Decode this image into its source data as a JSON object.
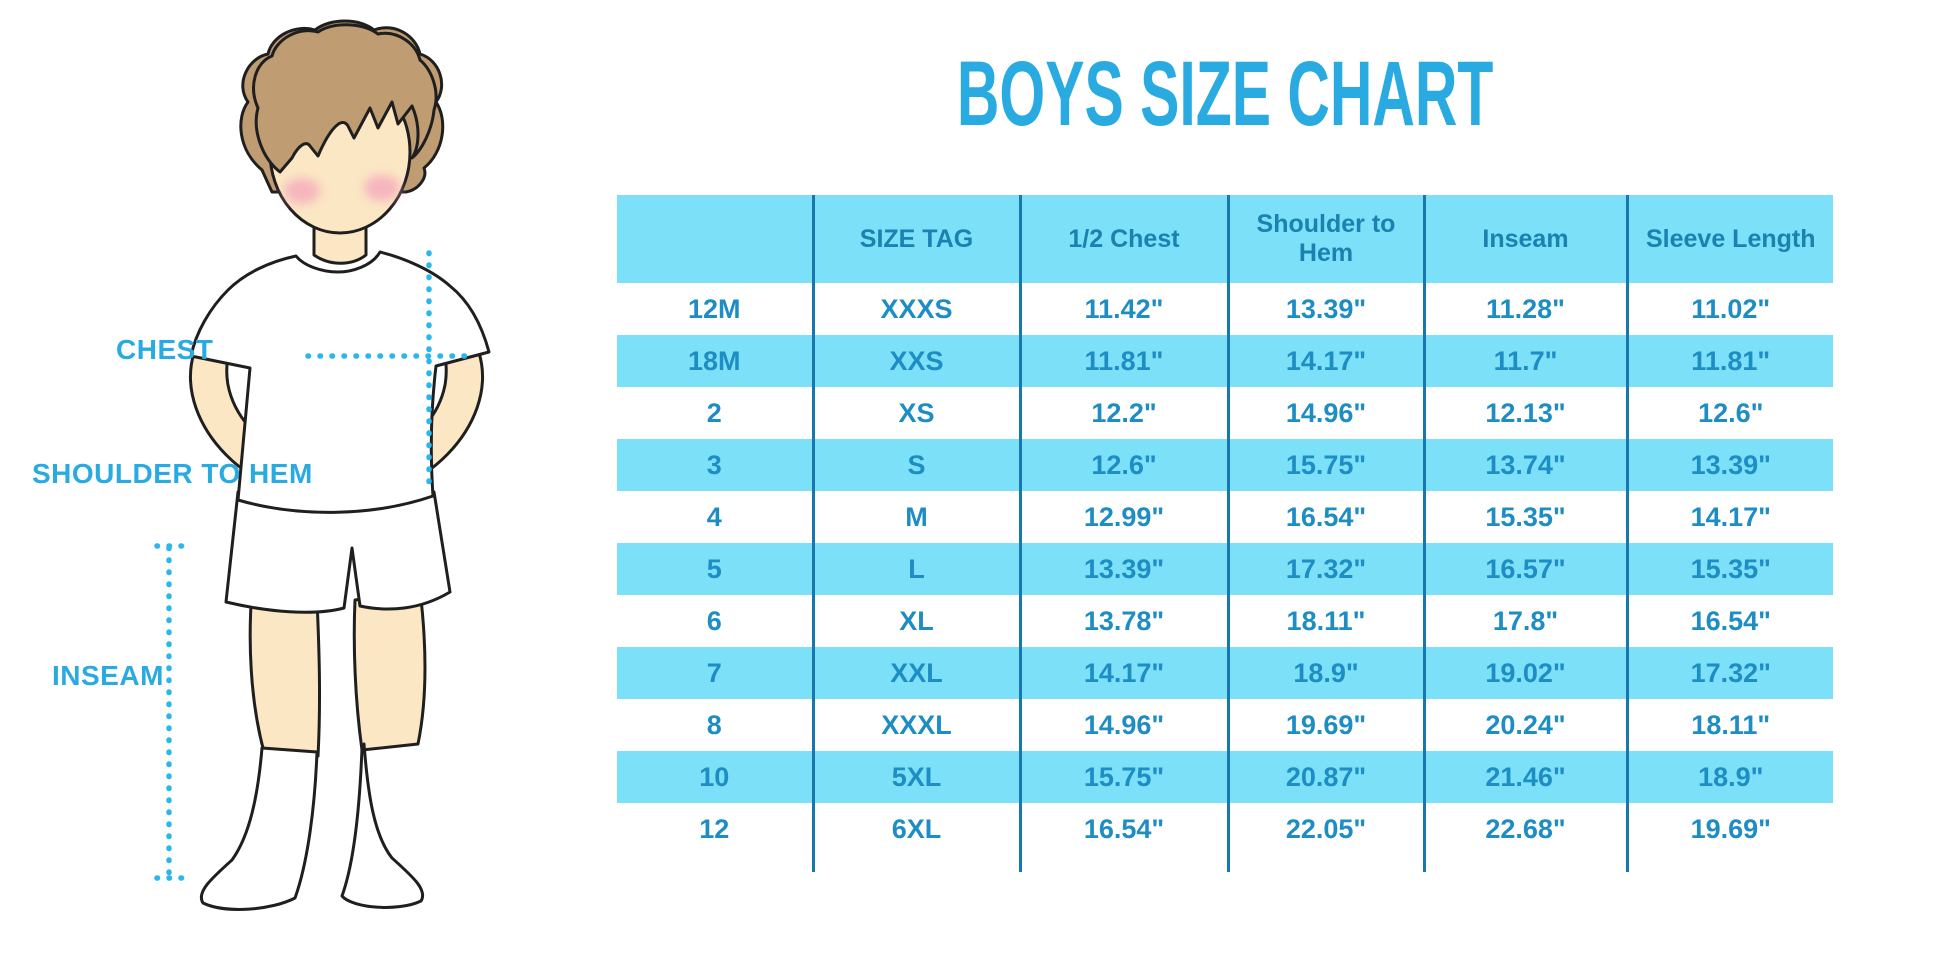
{
  "title": "BOYS SIZE CHART",
  "figure": {
    "labels": {
      "chest": "CHEST",
      "shoulder_to_hem": "SHOULDER TO HEM",
      "inseam": "INSEAM"
    }
  },
  "colors": {
    "accent": "#29ABE2",
    "header_text": "#1A81B0",
    "cell_text": "#1E8DC4",
    "row_fill": "#7BE0F8",
    "grid_line": "#1878AD",
    "dot_line": "#2BB7EC",
    "skin": "#FBE7C4",
    "hair": "#BF9C72",
    "blush": "#F4A9BC",
    "outline": "#1F1F1F"
  },
  "chart_data": {
    "type": "table",
    "columns": [
      "",
      "SIZE TAG",
      "1/2 Chest",
      "Shoulder to Hem",
      "Inseam",
      "Sleeve Length"
    ],
    "rows": [
      [
        "12M",
        "XXXS",
        "11.42\"",
        "13.39\"",
        "11.28\"",
        "11.02\""
      ],
      [
        "18M",
        "XXS",
        "11.81\"",
        "14.17\"",
        "11.7\"",
        "11.81\""
      ],
      [
        "2",
        "XS",
        "12.2\"",
        "14.96\"",
        "12.13\"",
        "12.6\""
      ],
      [
        "3",
        "S",
        "12.6\"",
        "15.75\"",
        "13.74\"",
        "13.39\""
      ],
      [
        "4",
        "M",
        "12.99\"",
        "16.54\"",
        "15.35\"",
        "14.17\""
      ],
      [
        "5",
        "L",
        "13.39\"",
        "17.32\"",
        "16.57\"",
        "15.35\""
      ],
      [
        "6",
        "XL",
        "13.78\"",
        "18.11\"",
        "17.8\"",
        "16.54\""
      ],
      [
        "7",
        "XXL",
        "14.17\"",
        "18.9\"",
        "19.02\"",
        "17.32\""
      ],
      [
        "8",
        "XXXL",
        "14.96\"",
        "19.69\"",
        "20.24\"",
        "18.11\""
      ],
      [
        "10",
        "5XL",
        "15.75\"",
        "20.87\"",
        "21.46\"",
        "18.9\""
      ],
      [
        "12",
        "6XL",
        "16.54\"",
        "22.05\"",
        "22.68\"",
        "19.69\""
      ]
    ]
  }
}
